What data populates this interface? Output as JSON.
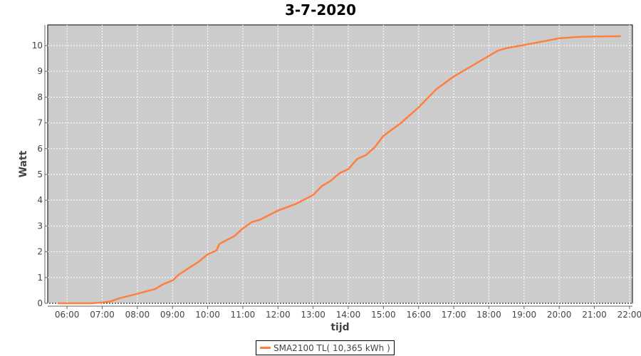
{
  "chart_data": {
    "type": "line",
    "title": "3-7-2020",
    "xlabel": "tijd",
    "ylabel": "Watt",
    "x_ticks": [
      "06:00",
      "07:00",
      "08:00",
      "09:00",
      "10:00",
      "11:00",
      "12:00",
      "13:00",
      "14:00",
      "15:00",
      "16:00",
      "17:00",
      "18:00",
      "19:00",
      "20:00",
      "21:00",
      "22:00"
    ],
    "y_ticks": [
      0,
      1,
      2,
      3,
      4,
      5,
      6,
      7,
      8,
      9,
      10
    ],
    "ylim": [
      0,
      10.8
    ],
    "xlim": [
      "05:27",
      "22:05"
    ],
    "grid": true,
    "legend_position": "bottom",
    "background": "#cccccc",
    "series": [
      {
        "name": "SMA2100 TL( 10,365 kWh )",
        "color": "#ff7f3f",
        "x": [
          "05:45",
          "06:40",
          "07:00",
          "07:15",
          "07:30",
          "08:00",
          "08:30",
          "08:45",
          "09:00",
          "09:10",
          "09:30",
          "09:45",
          "10:00",
          "10:15",
          "10:20",
          "10:45",
          "11:00",
          "11:15",
          "11:30",
          "12:00",
          "12:30",
          "13:00",
          "13:15",
          "13:30",
          "13:45",
          "14:00",
          "14:15",
          "14:30",
          "14:45",
          "15:00",
          "15:30",
          "16:00",
          "16:30",
          "17:00",
          "17:30",
          "18:00",
          "18:15",
          "18:30",
          "19:00",
          "19:30",
          "20:00",
          "20:30",
          "21:00",
          "21:45"
        ],
        "y": [
          0,
          0,
          0.03,
          0.08,
          0.2,
          0.37,
          0.55,
          0.75,
          0.88,
          1.1,
          1.4,
          1.62,
          1.9,
          2.05,
          2.3,
          2.6,
          2.9,
          3.15,
          3.25,
          3.6,
          3.85,
          4.2,
          4.55,
          4.75,
          5.05,
          5.2,
          5.6,
          5.75,
          6.05,
          6.5,
          7.0,
          7.6,
          8.3,
          8.8,
          9.2,
          9.6,
          9.8,
          9.9,
          10.02,
          10.15,
          10.28,
          10.33,
          10.35,
          10.36
        ]
      }
    ]
  }
}
